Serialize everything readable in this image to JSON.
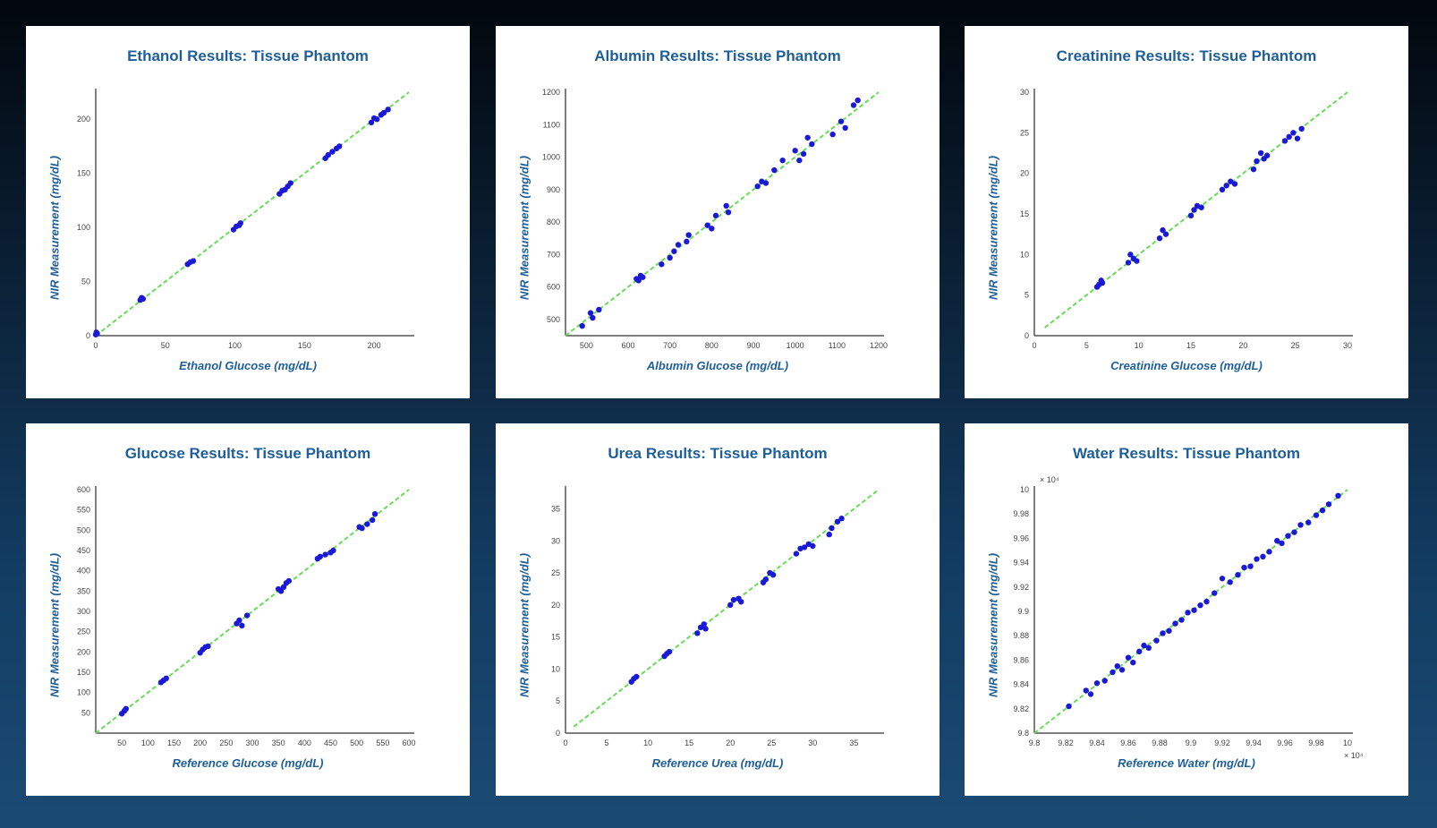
{
  "colors": {
    "point": "#1a1ad6",
    "fit_line": "#66dd55",
    "title": "#1e5f99",
    "axis": "#555555"
  },
  "chart_data": [
    {
      "type": "scatter",
      "title": "Ethanol Results: Tissue Phantom",
      "xlabel": "Ethanol Glucose (mg/dL)",
      "ylabel": "NIR Measurement (mg/dL)",
      "xlim": [
        0,
        225
      ],
      "ylim": [
        0,
        225
      ],
      "xticks": [
        0,
        50,
        100,
        150,
        200
      ],
      "yticks": [
        0,
        50,
        100,
        150,
        200
      ],
      "tick_labels_x": [
        "0",
        "50",
        "100",
        "150",
        "200"
      ],
      "tick_labels_y": [
        "0",
        "50",
        "100",
        "150",
        "200"
      ],
      "fit_line": [
        [
          0,
          0
        ],
        [
          225,
          225
        ]
      ],
      "x": [
        0,
        1,
        0.5,
        32,
        33,
        34,
        66,
        68,
        70,
        99,
        101,
        103,
        104,
        132,
        134,
        136,
        138,
        140,
        165,
        167,
        170,
        173,
        175,
        198,
        200,
        202,
        205,
        207,
        210
      ],
      "y": [
        1,
        2,
        3,
        33,
        35,
        34,
        66,
        68,
        69,
        98,
        101,
        102,
        104,
        131,
        134,
        135,
        138,
        141,
        164,
        167,
        170,
        173,
        175,
        197,
        201,
        200,
        204,
        206,
        209
      ]
    },
    {
      "type": "scatter",
      "title": "Albumin Results: Tissue Phantom",
      "xlabel": "Albumin Glucose (mg/dL)",
      "ylabel": "NIR Measurement (mg/dL)",
      "xlim": [
        450,
        1200
      ],
      "ylim": [
        450,
        1200
      ],
      "xticks": [
        500,
        600,
        700,
        800,
        900,
        1000,
        1100,
        1200
      ],
      "yticks": [
        500,
        600,
        700,
        800,
        900,
        1000,
        1100,
        1200
      ],
      "tick_labels_x": [
        "500",
        "600",
        "700",
        "800",
        "900",
        "1000",
        "1100",
        "1200"
      ],
      "tick_labels_y": [
        "500",
        "600",
        "700",
        "800",
        "900",
        "1000",
        "1100",
        "1200"
      ],
      "fit_line": [
        [
          450,
          450
        ],
        [
          1200,
          1200
        ]
      ],
      "x": [
        490,
        510,
        515,
        530,
        620,
        625,
        630,
        635,
        680,
        700,
        710,
        720,
        740,
        745,
        790,
        800,
        810,
        835,
        840,
        910,
        920,
        930,
        950,
        970,
        1000,
        1010,
        1020,
        1030,
        1040,
        1090,
        1110,
        1120,
        1140,
        1150
      ],
      "y": [
        480,
        520,
        505,
        530,
        625,
        620,
        635,
        630,
        670,
        690,
        710,
        730,
        740,
        760,
        790,
        780,
        820,
        850,
        830,
        910,
        925,
        920,
        960,
        990,
        1020,
        990,
        1010,
        1060,
        1040,
        1070,
        1110,
        1090,
        1160,
        1175
      ]
    },
    {
      "type": "scatter",
      "title": "Creatinine Results: Tissue Phantom",
      "xlabel": "Creatinine Glucose (mg/dL)",
      "ylabel": "NIR Measurement (mg/dL)",
      "xlim": [
        0,
        30
      ],
      "ylim": [
        0,
        30
      ],
      "xticks": [
        0,
        5,
        10,
        15,
        20,
        25,
        30
      ],
      "yticks": [
        0,
        5,
        10,
        15,
        20,
        25,
        30
      ],
      "tick_labels_x": [
        "0",
        "5",
        "10",
        "15",
        "20",
        "25",
        "30"
      ],
      "tick_labels_y": [
        "0",
        "5",
        "10",
        "15",
        "20",
        "25",
        "30"
      ],
      "fit_line": [
        [
          1,
          1
        ],
        [
          30,
          30
        ]
      ],
      "x": [
        6,
        6.2,
        6.4,
        6.5,
        9,
        9.2,
        9.5,
        9.8,
        12,
        12.3,
        12.6,
        15,
        15.3,
        15.6,
        16,
        18,
        18.4,
        18.8,
        19.2,
        21,
        21.3,
        21.7,
        22,
        22.3,
        24,
        24.4,
        24.8,
        25.2,
        25.6
      ],
      "y": [
        6,
        6.3,
        6.8,
        6.5,
        9,
        10,
        9.5,
        9.2,
        12,
        13,
        12.5,
        14.8,
        15.5,
        16,
        15.8,
        18,
        18.5,
        19,
        18.7,
        20.5,
        21.5,
        22.5,
        21.8,
        22.2,
        24,
        24.5,
        25,
        24.3,
        25.5
      ]
    },
    {
      "type": "scatter",
      "title": "Glucose Results: Tissue Phantom",
      "xlabel": "Reference Glucose (mg/dL)",
      "ylabel": "NIR Measurement (mg/dL)",
      "xlim": [
        0,
        600
      ],
      "ylim": [
        0,
        600
      ],
      "xticks": [
        50,
        100,
        150,
        200,
        250,
        300,
        350,
        400,
        450,
        500,
        550,
        600
      ],
      "yticks": [
        50,
        100,
        150,
        200,
        250,
        300,
        350,
        400,
        450,
        500,
        550,
        600
      ],
      "tick_labels_x": [
        "50",
        "100",
        "150",
        "200",
        "250",
        "300",
        "350",
        "400",
        "450",
        "500",
        "550",
        "600"
      ],
      "tick_labels_y": [
        "50",
        "100",
        "150",
        "200",
        "250",
        "300",
        "350",
        "400",
        "450",
        "500",
        "550",
        "600"
      ],
      "fit_line": [
        [
          0,
          0
        ],
        [
          600,
          600
        ]
      ],
      "x": [
        50,
        55,
        58,
        125,
        130,
        135,
        200,
        205,
        210,
        215,
        270,
        275,
        280,
        290,
        350,
        355,
        360,
        365,
        370,
        425,
        430,
        440,
        450,
        455,
        505,
        510,
        520,
        530,
        535
      ],
      "y": [
        48,
        55,
        60,
        125,
        130,
        135,
        198,
        206,
        212,
        214,
        270,
        278,
        265,
        290,
        355,
        350,
        360,
        370,
        375,
        430,
        435,
        440,
        445,
        450,
        508,
        505,
        515,
        525,
        540
      ]
    },
    {
      "type": "scatter",
      "title": "Urea Results: Tissue Phantom",
      "xlabel": "Reference Urea (mg/dL)",
      "ylabel": "NIR Measurement (mg/dL)",
      "xlim": [
        0,
        38
      ],
      "ylim": [
        0,
        38
      ],
      "xticks": [
        0,
        5,
        10,
        15,
        20,
        25,
        30,
        35
      ],
      "yticks": [
        0,
        5,
        10,
        15,
        20,
        25,
        30,
        35
      ],
      "tick_labels_x": [
        "0",
        "5",
        "10",
        "15",
        "20",
        "25",
        "30",
        "35"
      ],
      "tick_labels_y": [
        "0",
        "5",
        "10",
        "15",
        "20",
        "25",
        "30",
        "35"
      ],
      "fit_line": [
        [
          1,
          1
        ],
        [
          38,
          38
        ]
      ],
      "x": [
        8,
        8.3,
        8.6,
        12,
        12.3,
        12.6,
        16,
        16.4,
        16.8,
        17,
        20,
        20.4,
        21,
        21.3,
        24,
        24.3,
        24.8,
        25.2,
        28,
        28.5,
        29,
        29.5,
        30,
        32,
        32.3,
        33,
        33.5
      ],
      "y": [
        8,
        8.5,
        8.8,
        12,
        12.4,
        12.7,
        15.6,
        16.5,
        17,
        16.3,
        20,
        20.8,
        21,
        20.5,
        23.5,
        24,
        25,
        24.7,
        28,
        28.8,
        29,
        29.5,
        29.2,
        31,
        32,
        33,
        33.5
      ]
    },
    {
      "type": "scatter",
      "title": "Water Results: Tissue Phantom",
      "xlabel": "Reference Water (mg/dL)",
      "ylabel": "NIR Measurement (mg/dL)",
      "exponent_label": "× 10⁴",
      "xlim": [
        9.8,
        10
      ],
      "ylim": [
        9.8,
        10
      ],
      "xticks": [
        9.8,
        9.82,
        9.84,
        9.86,
        9.88,
        9.9,
        9.92,
        9.94,
        9.96,
        9.98,
        10
      ],
      "yticks": [
        9.8,
        9.82,
        9.84,
        9.86,
        9.88,
        9.9,
        9.92,
        9.94,
        9.96,
        9.98,
        10
      ],
      "tick_labels_x": [
        "9.8",
        "9.82",
        "9.84",
        "9.86",
        "9.88",
        "9.9",
        "9.92",
        "9.94",
        "9.96",
        "9.98",
        "10"
      ],
      "tick_labels_y": [
        "9.8",
        "9.82",
        "9.84",
        "9.86",
        "9.88",
        "9.9",
        "9.92",
        "9.94",
        "9.96",
        "9.98",
        "10"
      ],
      "fit_line": [
        [
          9.8,
          9.8
        ],
        [
          10,
          10
        ]
      ],
      "x": [
        9.822,
        9.833,
        9.836,
        9.84,
        9.845,
        9.85,
        9.853,
        9.856,
        9.86,
        9.863,
        9.867,
        9.87,
        9.873,
        9.878,
        9.882,
        9.886,
        9.89,
        9.894,
        9.898,
        9.902,
        9.906,
        9.91,
        9.915,
        9.92,
        9.925,
        9.93,
        9.934,
        9.938,
        9.942,
        9.946,
        9.95,
        9.955,
        9.958,
        9.962,
        9.966,
        9.97,
        9.975,
        9.98,
        9.984,
        9.988,
        9.994
      ],
      "y": [
        9.822,
        9.835,
        9.832,
        9.841,
        9.843,
        9.85,
        9.855,
        9.852,
        9.862,
        9.858,
        9.867,
        9.872,
        9.87,
        9.876,
        9.882,
        9.884,
        9.89,
        9.893,
        9.899,
        9.901,
        9.905,
        9.908,
        9.915,
        9.927,
        9.924,
        9.93,
        9.936,
        9.937,
        9.943,
        9.945,
        9.949,
        9.958,
        9.956,
        9.962,
        9.965,
        9.971,
        9.973,
        9.979,
        9.983,
        9.988,
        9.995
      ]
    }
  ]
}
